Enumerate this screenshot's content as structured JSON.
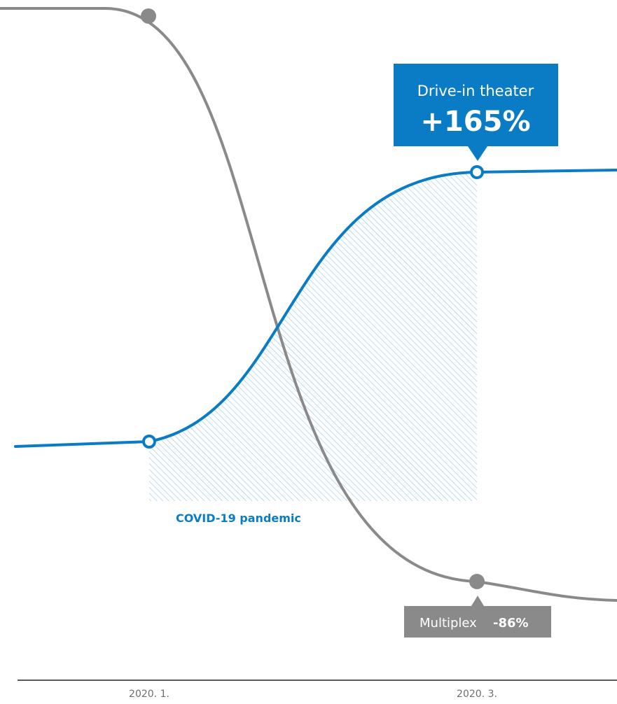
{
  "chart_data": {
    "type": "line",
    "x": [
      "2020. 1.",
      "2020. 3."
    ],
    "series": [
      {
        "name": "Drive-in theater",
        "color": "#0a7cc6",
        "change": "+165%"
      },
      {
        "name": "Multiplex",
        "color": "#8a8a8a",
        "change": "-86%"
      }
    ],
    "shaded_region": {
      "from": "2020. 1.",
      "to": "2020. 3.",
      "label": "COVID-19 pandemic",
      "pattern": "diagonal-hatch",
      "color": "#8cc8e6"
    },
    "grid": false,
    "legend": "none"
  },
  "callouts": {
    "drive_in": {
      "label": "Drive-in theater",
      "value": "+165%",
      "color": "#0a7cc6"
    },
    "multiplex": {
      "label": "Multiplex",
      "value": "-86%",
      "color": "#8a8a8a"
    },
    "pandemic": {
      "label": "COVID-19 pandemic"
    }
  },
  "x_axis": {
    "ticks": [
      "2020. 1.",
      "2020. 3."
    ]
  }
}
